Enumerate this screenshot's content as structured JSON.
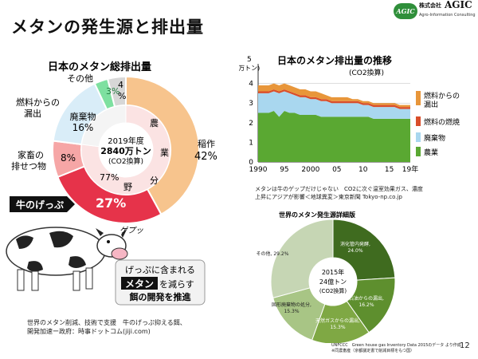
{
  "header": {
    "title": "メタンの発生源と排出量",
    "logo": {
      "company": "株式会社",
      "brand": "AGIC",
      "subtitle": "Agro-Information Consulting",
      "mark": "AGIC"
    }
  },
  "left_chart": {
    "title": "日本のメタン総排出量",
    "center_lines": [
      "2019年度",
      "2840万トン",
      "(CO2換算)"
    ],
    "slice_labels": {
      "rice": [
        "稲作",
        "42%"
      ],
      "cow": "27%",
      "livestock_waste": "8%",
      "waste": [
        "廃棄物",
        "16%"
      ],
      "fuel_leak": "3%",
      "other": [
        "4",
        "%"
      ]
    },
    "outside_labels": {
      "other": "その他",
      "fuel_leak": [
        "燃料からの",
        "漏出"
      ],
      "livestock_waste": [
        "家畜の",
        "排せつ物"
      ],
      "cow": "牛のげっぷ"
    },
    "inner_ring": {
      "label_chars": [
        "農",
        "業",
        "分",
        "野"
      ],
      "pct": "77%"
    },
    "burp_text": "ゲプッ",
    "callout": {
      "line1": "げっぷに含まれる",
      "highlight": "メタン",
      "line2_rest": "を減らす",
      "line3": "餌の開発を推進"
    },
    "caption": [
      "世界のメタン削減、技術で支援　牛のげっぷ抑える餌、",
      "開発加速ー政府：時事ドットコム(jiji.com)"
    ]
  },
  "chart_data": [
    {
      "type": "area",
      "title": "日本のメタン排出量の推移",
      "subtitle": "(CO2換算)",
      "ylabel": "(万トン)",
      "y_unit_top": "5",
      "ylim": [
        0,
        5
      ],
      "y_ticks": [
        "0",
        "1",
        "2",
        "3",
        "4"
      ],
      "x_ticks": [
        "1990",
        "95",
        "2000",
        "05",
        "10",
        "15",
        "19年"
      ],
      "x": [
        1990,
        1991,
        1992,
        1993,
        1994,
        1995,
        1996,
        1997,
        1998,
        1999,
        2000,
        2001,
        2002,
        2003,
        2004,
        2005,
        2006,
        2007,
        2008,
        2009,
        2010,
        2011,
        2012,
        2013,
        2014,
        2015,
        2016,
        2017,
        2018,
        2019
      ],
      "series": [
        {
          "name": "農業",
          "color": "#5aa832",
          "values": [
            2.5,
            2.5,
            2.5,
            2.6,
            2.3,
            2.6,
            2.5,
            2.5,
            2.4,
            2.4,
            2.4,
            2.4,
            2.3,
            2.3,
            2.3,
            2.3,
            2.3,
            2.3,
            2.3,
            2.3,
            2.3,
            2.3,
            2.2,
            2.2,
            2.2,
            2.2,
            2.2,
            2.2,
            2.2,
            2.2
          ]
        },
        {
          "name": "廃棄物",
          "color": "#a9d7ef",
          "values": [
            1.0,
            1.0,
            1.0,
            1.0,
            1.2,
            1.0,
            1.0,
            0.9,
            0.9,
            0.9,
            0.8,
            0.8,
            0.8,
            0.8,
            0.7,
            0.7,
            0.7,
            0.7,
            0.7,
            0.7,
            0.6,
            0.6,
            0.6,
            0.6,
            0.6,
            0.6,
            0.6,
            0.5,
            0.5,
            0.5
          ]
        },
        {
          "name": "燃料の燃焼",
          "color": "#d94e2a",
          "values": [
            0.1,
            0.1,
            0.1,
            0.1,
            0.1,
            0.1,
            0.1,
            0.1,
            0.1,
            0.1,
            0.1,
            0.1,
            0.1,
            0.1,
            0.1,
            0.1,
            0.1,
            0.1,
            0.1,
            0.1,
            0.1,
            0.1,
            0.1,
            0.1,
            0.1,
            0.1,
            0.1,
            0.1,
            0.1,
            0.1
          ]
        },
        {
          "name": "燃料からの漏出",
          "color": "#e8963a",
          "values": [
            0.3,
            0.3,
            0.3,
            0.3,
            0.3,
            0.3,
            0.3,
            0.3,
            0.3,
            0.3,
            0.3,
            0.3,
            0.3,
            0.2,
            0.2,
            0.2,
            0.2,
            0.2,
            0.1,
            0.1,
            0.1,
            0.1,
            0.1,
            0.1,
            0.1,
            0.1,
            0.1,
            0.1,
            0.1,
            0.1
          ]
        }
      ],
      "legend_lines": {
        "fuel_leak": [
          "燃料からの",
          "漏出"
        ],
        "combustion": "燃料の燃焼",
        "waste": "廃棄物",
        "agri": "農業"
      }
    },
    {
      "type": "pie",
      "title": "世界のメタン発生源詳細版",
      "center_lines": [
        "2015年",
        "24億トン",
        "(CO2換算)"
      ],
      "categories": [
        "消化管内発酵",
        "石油からの漏出",
        "天然ガスからの漏出",
        "固形廃棄物の処分",
        "その他"
      ],
      "values": [
        24.0,
        16.2,
        15.3,
        15.3,
        29.2
      ],
      "value_labels": [
        "24.0%",
        "16.2%",
        "15.3%",
        "15.3%",
        "29.2%"
      ],
      "slice_text": [
        [
          "消化管内発酵,",
          "24.0%"
        ],
        [
          "石油からの漏出,",
          "16.2%"
        ],
        [
          "天然ガスからの漏出,",
          "15.3%"
        ],
        [
          "固形廃棄物の処分,",
          "15.3%"
        ],
        [
          "その他, 29.2%"
        ]
      ],
      "colors": [
        "#3f6b1f",
        "#5e8f2e",
        "#7fa844",
        "#a8c585",
        "#c6d6b4"
      ]
    }
  ],
  "right_caption": [
    "メタンは牛のゲップだけじゃない　CO2に次ぐ温室効果ガス、濃度",
    "上昇にアジアが影響＜地球異変＞東京新聞 Tokyo-np.co.jp"
  ],
  "footer_note": [
    "UNFCCC　Green house gas Inventory Data 2015のデータ より作成",
    "※同農畜産（京都議定書で削減目標をもつ国）"
  ],
  "page_number": "12"
}
